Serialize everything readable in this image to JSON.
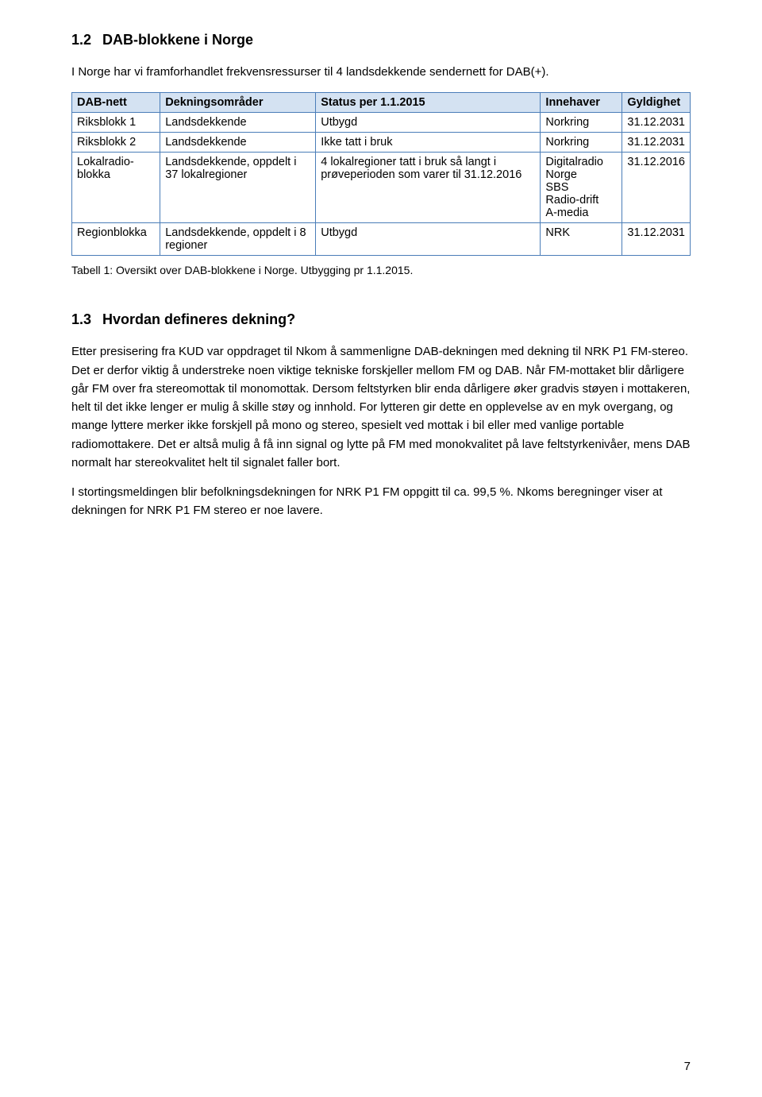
{
  "section12": {
    "number": "1.2",
    "title": "DAB-blokkene i Norge",
    "intro": "I Norge har vi framforhandlet frekvensressurser til 4 landsdekkende sendernett for DAB(+)."
  },
  "table": {
    "headers": {
      "c1": "DAB-nett",
      "c2": "Dekningsområder",
      "c3": "Status per 1.1.2015",
      "c4": "Innehaver",
      "c5": "Gyldighet"
    },
    "r1": {
      "c1": "Riksblokk 1",
      "c2": "Landsdekkende",
      "c3": "Utbygd",
      "c4": "Norkring",
      "c5": "31.12.2031"
    },
    "r2": {
      "c1": "Riksblokk 2",
      "c2": "Landsdekkende",
      "c3": "Ikke tatt i bruk",
      "c4": "Norkring",
      "c5": "31.12.2031"
    },
    "r3": {
      "c1": "Lokalradio-blokka",
      "c2": "Landsdekkende, oppdelt i 37 lokalregioner",
      "c3": "4 lokalregioner tatt i bruk så langt i prøveperioden som varer til 31.12.2016",
      "c4": "Digitalradio Norge\nSBS\nRadio-drift\nA-media",
      "c5": "31.12.2016"
    },
    "r4": {
      "c1": "Regionblokka",
      "c2": "Landsdekkende, oppdelt i 8 regioner",
      "c3": "Utbygd",
      "c4": "NRK",
      "c5": "31.12.2031"
    },
    "caption": "Tabell 1: Oversikt over DAB-blokkene i Norge. Utbygging pr 1.1.2015."
  },
  "section13": {
    "number": "1.3",
    "title": "Hvordan defineres dekning?",
    "p1": "Etter presisering fra KUD var oppdraget til Nkom å sammenligne DAB-dekningen med dekning til NRK P1 FM-stereo. Det er derfor viktig å understreke noen viktige tekniske forskjeller mellom FM og DAB. Når FM-mottaket blir dårligere går FM over fra stereomottak til monomottak. Dersom feltstyrken blir enda dårligere øker gradvis støyen i mottakeren, helt til det ikke lenger er mulig å skille støy og innhold. For lytteren gir dette en opplevelse av en myk overgang, og mange lyttere merker ikke forskjell på mono og stereo, spesielt ved mottak i bil eller med vanlige portable radiomottakere. Det er altså mulig å få inn signal og lytte på FM med monokvalitet på lave feltstyrkenivåer, mens DAB normalt har stereokvalitet helt til signalet faller bort.",
    "p2": "I stortingsmeldingen blir befolkningsdekningen for NRK P1 FM oppgitt til ca. 99,5 %. Nkoms beregninger viser at dekningen for NRK P1 FM stereo er noe lavere."
  },
  "pageNumber": "7",
  "style": {
    "header_bg": "#d4e2f2",
    "border_color": "#4a7db8",
    "font_family": "Arial",
    "body_fontsize": 15,
    "heading_fontsize": 18,
    "caption_fontsize": 14
  }
}
